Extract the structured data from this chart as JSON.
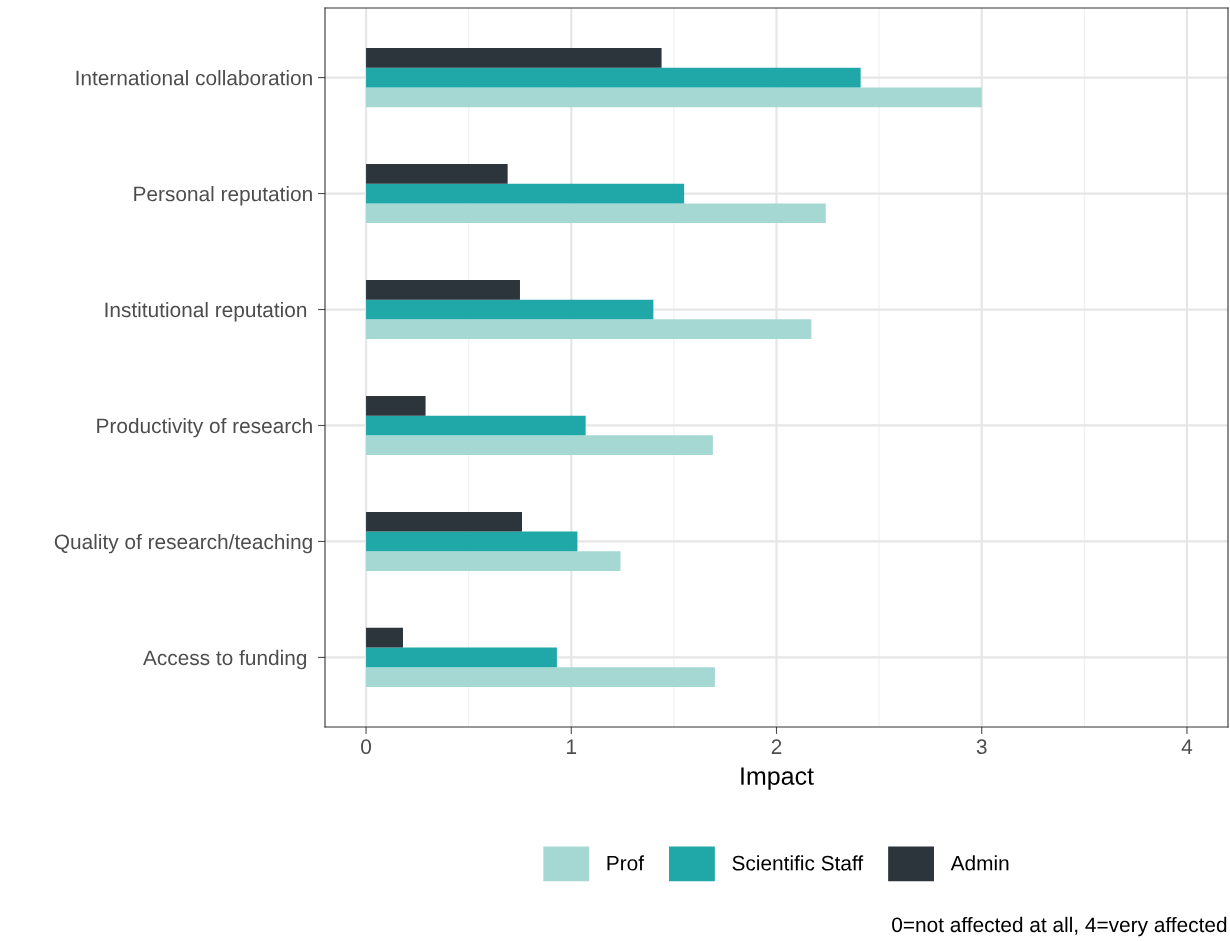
{
  "chart_data": {
    "type": "bar",
    "orientation": "horizontal",
    "xlabel": "Impact",
    "categories": [
      "International collaboration",
      "Personal reputation",
      "Institutional reputation ",
      "Productivity of research",
      "Quality of research/teaching",
      "Access to funding "
    ],
    "series": [
      {
        "name": "Prof",
        "color": "#a5d8d3",
        "values": [
          3.0,
          2.24,
          2.17,
          1.69,
          1.24,
          1.7
        ]
      },
      {
        "name": "Scientific Staff",
        "color": "#20a8a8",
        "values": [
          2.41,
          1.55,
          1.4,
          1.07,
          1.03,
          0.93
        ]
      },
      {
        "name": "Admin",
        "color": "#2d353c",
        "values": [
          1.44,
          0.69,
          0.75,
          0.29,
          0.76,
          0.18
        ]
      }
    ],
    "xlim": [
      -0.2,
      4.2
    ],
    "xticks": [
      0,
      1,
      2,
      3,
      4
    ],
    "grid": true,
    "legend": "bottom",
    "annotations": [
      "0=not affected at all, 4=very affected"
    ]
  }
}
